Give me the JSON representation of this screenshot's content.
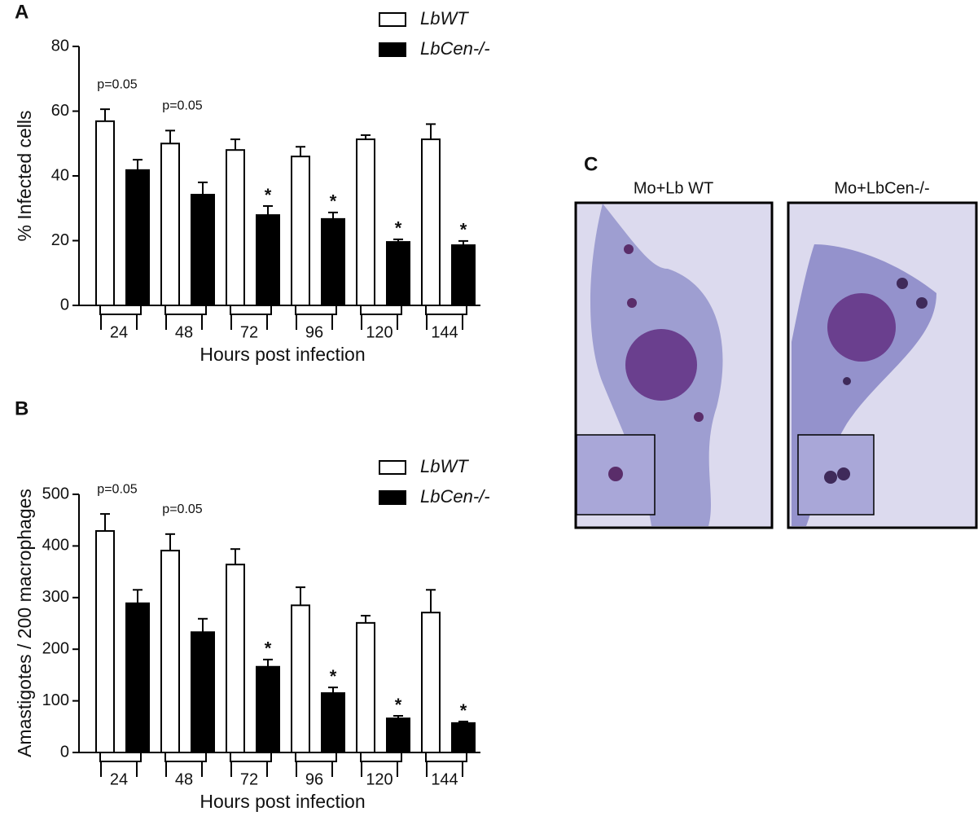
{
  "chart_data": [
    {
      "type": "bar",
      "panel_label": "A",
      "y_label": "% Infected cells",
      "x_label": "Hours post infection",
      "categories": [
        "24",
        "48",
        "72",
        "96",
        "120",
        "144"
      ],
      "ylim": [
        0,
        80
      ],
      "yticks": [
        0,
        20,
        40,
        60,
        80
      ],
      "annotations": [
        "p=0.05",
        "p=0.05",
        null,
        null,
        null,
        null
      ],
      "series": [
        {
          "name": "LbWT",
          "color": "#ffffff",
          "values": [
            56.9,
            50,
            48,
            46,
            51.3,
            51.3
          ],
          "errors": [
            3.7,
            4,
            3.3,
            3,
            1.3,
            4.7
          ],
          "marks": [
            null,
            null,
            null,
            null,
            null,
            null
          ]
        },
        {
          "name": "LbCen-/-",
          "color": "#000000",
          "values": [
            41.8,
            34.2,
            27.9,
            26.7,
            19.6,
            18.6
          ],
          "errors": [
            3.2,
            3.8,
            2.8,
            2,
            0.8,
            1.3
          ],
          "marks": [
            null,
            null,
            "*",
            "*",
            "*",
            "*"
          ]
        }
      ]
    },
    {
      "type": "bar",
      "panel_label": "B",
      "y_label": "Amastigotes / 200 macrophages",
      "x_label": "Hours post infection",
      "categories": [
        "24",
        "48",
        "72",
        "96",
        "120",
        "144"
      ],
      "ylim": [
        0,
        500
      ],
      "yticks": [
        0,
        100,
        200,
        300,
        400,
        500
      ],
      "annotations": [
        "p=0.05",
        "p=0.05",
        null,
        null,
        null,
        null
      ],
      "series": [
        {
          "name": "LbWT",
          "color": "#ffffff",
          "values": [
            429,
            391,
            364,
            285,
            251,
            271
          ],
          "errors": [
            33,
            32,
            30,
            35,
            14,
            44
          ],
          "marks": [
            null,
            null,
            null,
            null,
            null,
            null
          ]
        },
        {
          "name": "LbCen-/-",
          "color": "#000000",
          "values": [
            289,
            233,
            166,
            115,
            66,
            57
          ],
          "errors": [
            26,
            26,
            14,
            11,
            5,
            3
          ],
          "marks": [
            null,
            null,
            "*",
            "*",
            "*",
            "*"
          ]
        }
      ]
    }
  ],
  "panel_c": {
    "label": "C",
    "images": [
      {
        "title": "Mo+Lb WT"
      },
      {
        "title": "Mo+LbCen-/-"
      }
    ]
  }
}
